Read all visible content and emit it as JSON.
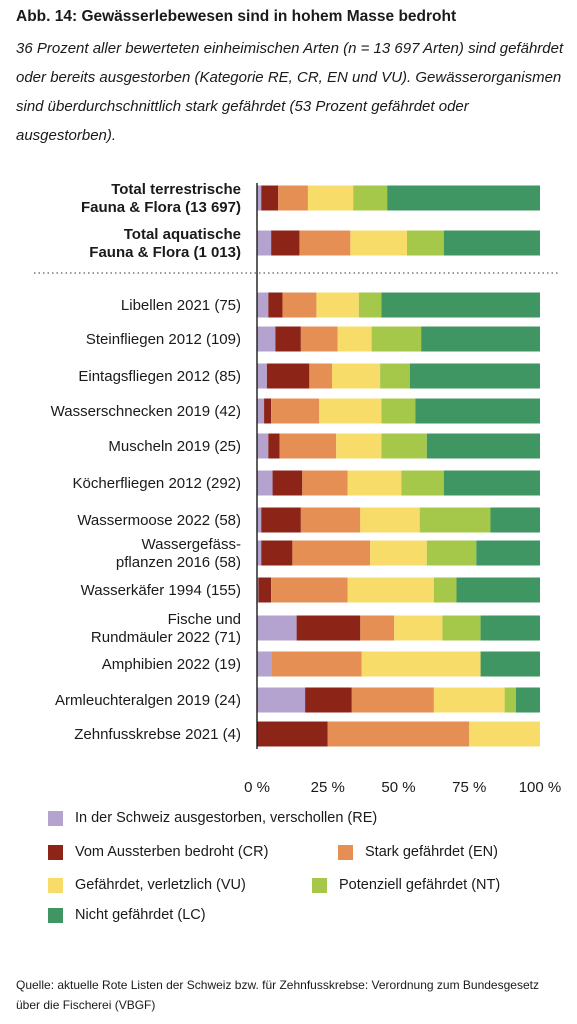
{
  "title": "Abb. 14:  Gewässerlebewesen sind in hohem Masse bedroht",
  "subtitle": "36 Prozent aller bewerteten einheimischen Arten (n = 13 697 Arten) sind gefährdet oder bereits ausgestorben (Kategorie RE, CR, EN und VU). Gewässerorganismen sind überdurchschnittlich stark gefährdet (53 Prozent gefährdet oder ausgestorben).",
  "source": "Quelle: aktuelle Rote Listen der Schweiz bzw. für Zehnfusskrebse: Verordnung zum Bundesgesetz über die Fischerei (VBGF)",
  "colors": {
    "RE": "#b4a3cf",
    "CR": "#8c2418",
    "EN": "#e58f55",
    "VU": "#f8dc6a",
    "NT": "#a5c74a",
    "LC": "#3f9663"
  },
  "chart_data": {
    "type": "bar",
    "orientation": "horizontal",
    "stacked": true,
    "xlim": [
      0,
      100
    ],
    "xticks": [
      "0 %",
      "25 %",
      "50 %",
      "75 %",
      "100 %"
    ],
    "categories": [
      "Total terrestrische Fauna & Flora (13 697)",
      "Total aquatische Fauna & Flora (1 013)",
      "Libellen 2021 (75)",
      "Steinfliegen 2012 (109)",
      "Eintagsfliegen 2012 (85)",
      "Wasserschnecken 2019 (42)",
      "Muscheln 2019 (25)",
      "Köcherfliegen 2012 (292)",
      "Wassermoose 2022 (58)",
      "Wassergefässpflanzen 2016 (58)",
      "Wasserkäfer 1994 (155)",
      "Fische und Rundmäuler 2022 (71)",
      "Amphibien 2022 (19)",
      "Armleuchteralgen 2019 (24)",
      "Zehnfusskrebse 2021 (4)"
    ],
    "label_lines": [
      [
        "Total terrestrische",
        "Fauna & Flora (13 697)"
      ],
      [
        "Total aquatische",
        "Fauna & Flora (1 013)"
      ],
      [
        "Libellen 2021 (75)"
      ],
      [
        "Steinfliegen 2012 (109)"
      ],
      [
        "Eintagsfliegen 2012 (85)"
      ],
      [
        "Wasserschnecken 2019 (42)"
      ],
      [
        "Muscheln 2019 (25)"
      ],
      [
        "Köcherfliegen 2012 (292)"
      ],
      [
        "Wassermoose 2022 (58)"
      ],
      [
        "Wassergefäss-",
        "pflanzen 2016 (58)"
      ],
      [
        "Wasserkäfer 1994 (155)"
      ],
      [
        "Fische und",
        "Rundmäuler 2022 (71)"
      ],
      [
        "Amphibien 2022 (19)"
      ],
      [
        "Armleuchteralgen 2019 (24)"
      ],
      [
        "Zehnfusskrebse 2021 (4)"
      ]
    ],
    "bold_categories": [
      0,
      1
    ],
    "series": [
      {
        "key": "RE",
        "name": "In der Schweiz ausgestorben, verschollen (RE)",
        "values": [
          1.5,
          5,
          4,
          6.5,
          3.5,
          2.5,
          4,
          5.5,
          1.5,
          1.5,
          0.5,
          14,
          5,
          17,
          0
        ]
      },
      {
        "key": "CR",
        "name": "Vom Aussterben bedroht (CR)",
        "values": [
          6,
          10,
          5,
          9,
          15,
          2.5,
          4,
          10.5,
          14,
          11,
          4.5,
          22.5,
          0,
          16.5,
          25
        ]
      },
      {
        "key": "EN",
        "name": "Stark gefährdet (EN)",
        "values": [
          10.5,
          18,
          12,
          13,
          8,
          17,
          20,
          16,
          21,
          27.5,
          27,
          12,
          32,
          29,
          50
        ]
      },
      {
        "key": "VU",
        "name": "Gefährdet, verletzlich (VU)",
        "values": [
          16,
          20,
          15,
          12,
          17,
          22,
          16,
          19,
          21,
          20,
          30.5,
          17,
          42,
          25,
          25
        ]
      },
      {
        "key": "NT",
        "name": "Potenziell gefährdet (NT)",
        "values": [
          12,
          13,
          8,
          17.5,
          10.5,
          12,
          16,
          15,
          25,
          17.5,
          8,
          13.5,
          0,
          4,
          0
        ]
      },
      {
        "key": "LC",
        "name": "Nicht gefährdet (LC)",
        "values": [
          54,
          34,
          56,
          42,
          46,
          44,
          40,
          34,
          17.5,
          22.5,
          29.5,
          21,
          21,
          8.5,
          0
        ]
      }
    ],
    "legend_position": "bottom"
  }
}
